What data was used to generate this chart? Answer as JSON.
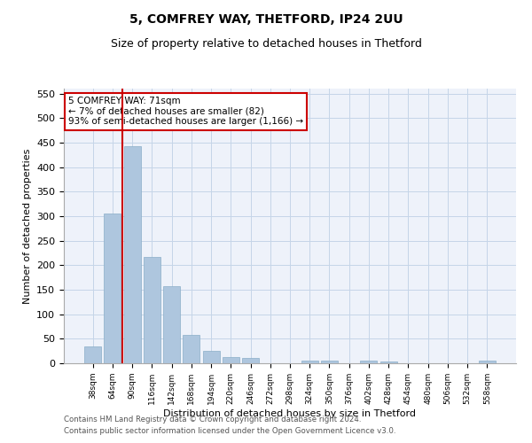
{
  "title1": "5, COMFREY WAY, THETFORD, IP24 2UU",
  "title2": "Size of property relative to detached houses in Thetford",
  "xlabel": "Distribution of detached houses by size in Thetford",
  "ylabel": "Number of detached properties",
  "categories": [
    "38sqm",
    "64sqm",
    "90sqm",
    "116sqm",
    "142sqm",
    "168sqm",
    "194sqm",
    "220sqm",
    "246sqm",
    "272sqm",
    "298sqm",
    "324sqm",
    "350sqm",
    "376sqm",
    "402sqm",
    "428sqm",
    "454sqm",
    "480sqm",
    "506sqm",
    "532sqm",
    "558sqm"
  ],
  "values": [
    35,
    305,
    443,
    217,
    157,
    57,
    25,
    12,
    10,
    0,
    0,
    5,
    5,
    0,
    5,
    3,
    0,
    0,
    0,
    0,
    5
  ],
  "bar_color": "#aec6de",
  "bar_edge_color": "#8aaec8",
  "vline_x": 1.5,
  "vline_color": "#cc0000",
  "ylim": [
    0,
    560
  ],
  "yticks": [
    0,
    50,
    100,
    150,
    200,
    250,
    300,
    350,
    400,
    450,
    500,
    550
  ],
  "annotation_text": "5 COMFREY WAY: 71sqm\n← 7% of detached houses are smaller (82)\n93% of semi-detached houses are larger (1,166) →",
  "annotation_box_color": "#ffffff",
  "annotation_box_edge_color": "#cc0000",
  "footer1": "Contains HM Land Registry data © Crown copyright and database right 2024.",
  "footer2": "Contains public sector information licensed under the Open Government Licence v3.0.",
  "plot_bg_color": "#eef2fa"
}
